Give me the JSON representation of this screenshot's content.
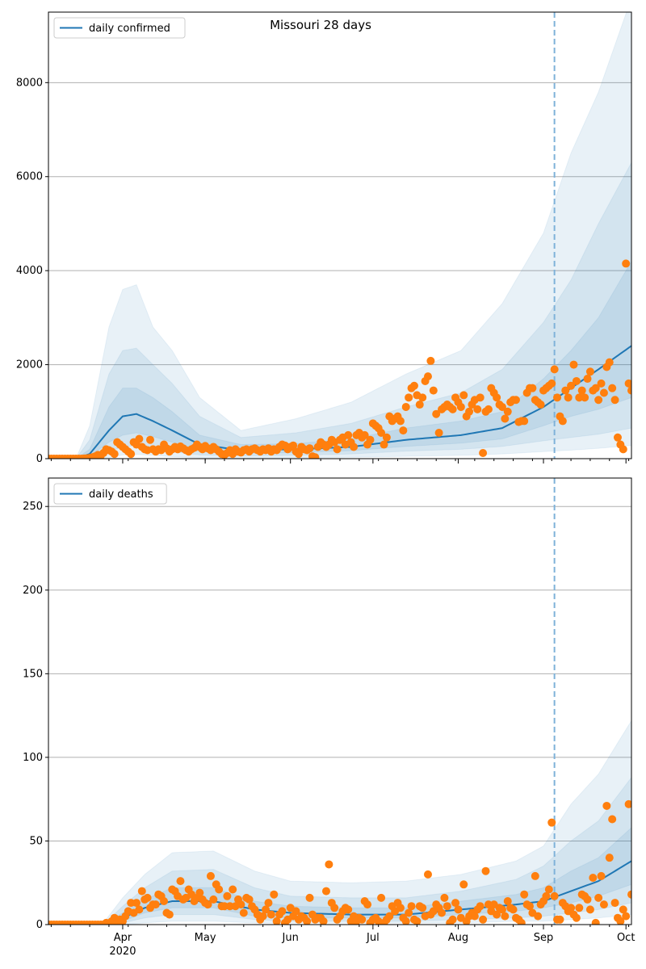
{
  "title": "Missouri 28 days",
  "year_label": "2020",
  "colors": {
    "median": "#1f77b4",
    "band": "#1f77b4",
    "observed": "#ff7f0e",
    "grid": "#b0b0b0",
    "forecast_line": "#7fb2d9"
  },
  "x_axis": {
    "start_date": "2020-03-05",
    "end_day": 212,
    "month_ticks": [
      {
        "label": "Apr",
        "day": 27
      },
      {
        "label": "May",
        "day": 57
      },
      {
        "label": "Jun",
        "day": 88
      },
      {
        "label": "Jul",
        "day": 118
      },
      {
        "label": "Aug",
        "day": 149
      },
      {
        "label": "Sep",
        "day": 180
      },
      {
        "label": "Oct",
        "day": 210
      }
    ],
    "forecast_start_day": 184
  },
  "chart_data": [
    {
      "type": "area",
      "legend": "daily confirmed",
      "legend_placement": "top-left",
      "ylim": [
        0,
        9500
      ],
      "yticks": [
        0,
        2000,
        4000,
        6000,
        8000
      ],
      "grid": true,
      "bands_keypoints": {
        "day": [
          0,
          10,
          15,
          22,
          27,
          32,
          38,
          45,
          55,
          70,
          90,
          110,
          130,
          150,
          165,
          180,
          190,
          200,
          212
        ],
        "lo95": [
          0,
          0,
          0,
          20,
          80,
          90,
          70,
          40,
          20,
          10,
          20,
          30,
          50,
          70,
          100,
          150,
          180,
          220,
          280
        ],
        "lo80": [
          0,
          0,
          20,
          150,
          250,
          280,
          220,
          150,
          80,
          60,
          70,
          100,
          160,
          200,
          260,
          380,
          450,
          520,
          650
        ],
        "lo50": [
          0,
          0,
          50,
          350,
          500,
          550,
          470,
          350,
          150,
          110,
          130,
          170,
          260,
          330,
          420,
          700,
          900,
          1050,
          1300
        ],
        "median": [
          0,
          0,
          100,
          600,
          900,
          950,
          800,
          600,
          300,
          180,
          200,
          250,
          400,
          500,
          650,
          1100,
          1500,
          1900,
          2400
        ],
        "hi50": [
          0,
          0,
          200,
          1100,
          1500,
          1500,
          1300,
          1000,
          500,
          300,
          320,
          420,
          650,
          800,
          1000,
          1700,
          2300,
          3000,
          4200
        ],
        "hi80": [
          0,
          0,
          400,
          1800,
          2300,
          2350,
          2000,
          1600,
          900,
          450,
          550,
          750,
          1100,
          1400,
          1900,
          2900,
          3800,
          5000,
          6300
        ],
        "hi95": [
          0,
          0,
          700,
          2800,
          3600,
          3700,
          2800,
          2300,
          1300,
          600,
          850,
          1200,
          1800,
          2300,
          3300,
          4800,
          6500,
          7800,
          9800
        ]
      },
      "observed": [
        0,
        0,
        0,
        0,
        0,
        0,
        0,
        0,
        0,
        0,
        0,
        0,
        0,
        5,
        8,
        15,
        30,
        50,
        80,
        60,
        120,
        200,
        180,
        150,
        100,
        350,
        300,
        250,
        200,
        150,
        100,
        350,
        300,
        420,
        250,
        200,
        180,
        400,
        200,
        150,
        200,
        180,
        300,
        220,
        150,
        200,
        250,
        200,
        260,
        220,
        180,
        150,
        200,
        230,
        300,
        250,
        200,
        270,
        220,
        180,
        250,
        200,
        150,
        100,
        80,
        120,
        180,
        100,
        200,
        150,
        130,
        180,
        200,
        150,
        200,
        220,
        180,
        150,
        200,
        180,
        220,
        150,
        200,
        180,
        250,
        300,
        280,
        200,
        250,
        280,
        150,
        100,
        250,
        200,
        180,
        220,
        50,
        30,
        250,
        350,
        300,
        250,
        300,
        400,
        350,
        200,
        400,
        450,
        300,
        500,
        350,
        250,
        500,
        550,
        450,
        500,
        300,
        400,
        750,
        700,
        650,
        550,
        300,
        450,
        900,
        800,
        850,
        900,
        800,
        600,
        1100,
        1300,
        1500,
        1550,
        1350,
        1150,
        1300,
        1650,
        1750,
        2080,
        1450,
        950,
        550,
        1050,
        1100,
        1150,
        1100,
        1050,
        1300,
        1200,
        1100,
        1350,
        900,
        1000,
        1150,
        1250,
        1050,
        1300,
        120,
        1000,
        1050,
        1500,
        1400,
        1300,
        1150,
        1100,
        850,
        1000,
        1200,
        1250,
        1250,
        780,
        800,
        800,
        1400,
        1500,
        1500,
        1250,
        1200,
        1150,
        1450,
        1500,
        1550,
        1600,
        1900,
        1300,
        900,
        800,
        1450,
        1300,
        1550,
        2000,
        1650,
        1300,
        1450,
        1300,
        1700,
        1850,
        1450,
        1500,
        1250,
        1600,
        1400,
        1950,
        2050,
        1500,
        1250,
        450,
        300,
        200,
        4150,
        1600,
        1450
      ]
    },
    {
      "type": "area",
      "legend": "daily deaths",
      "legend_placement": "top-left",
      "ylim": [
        0,
        267
      ],
      "yticks": [
        0,
        50,
        100,
        150,
        200,
        250
      ],
      "grid": true,
      "bands_keypoints": {
        "day": [
          0,
          20,
          27,
          35,
          45,
          60,
          75,
          88,
          110,
          130,
          150,
          170,
          180,
          190,
          200,
          212
        ],
        "lo95": [
          0,
          0,
          0,
          1,
          2,
          2,
          1,
          1,
          1,
          1,
          1,
          2,
          2,
          3,
          4,
          6
        ],
        "lo80": [
          0,
          0,
          1,
          4,
          6,
          6,
          3,
          2,
          2,
          2,
          3,
          4,
          5,
          7,
          9,
          13
        ],
        "lo50": [
          0,
          0,
          2,
          7,
          10,
          10,
          5,
          4,
          4,
          4,
          6,
          8,
          10,
          13,
          17,
          24
        ],
        "median": [
          0,
          0,
          4,
          10,
          14,
          14,
          9,
          7,
          6,
          6,
          9,
          12,
          14,
          20,
          26,
          38
        ],
        "hi50": [
          0,
          0,
          7,
          15,
          22,
          22,
          14,
          11,
          10,
          10,
          14,
          18,
          22,
          32,
          40,
          58
        ],
        "hi80": [
          0,
          0,
          11,
          22,
          32,
          33,
          22,
          17,
          16,
          16,
          20,
          27,
          35,
          50,
          62,
          88
        ],
        "hi95": [
          0,
          1,
          16,
          30,
          43,
          44,
          32,
          26,
          25,
          26,
          30,
          38,
          47,
          72,
          90,
          122
        ]
      },
      "observed": [
        0,
        0,
        0,
        0,
        0,
        0,
        0,
        0,
        0,
        0,
        0,
        0,
        0,
        0,
        0,
        0,
        0,
        0,
        0,
        0,
        0,
        1,
        0,
        2,
        4,
        1,
        3,
        2,
        5,
        8,
        13,
        7,
        13,
        9,
        20,
        15,
        16,
        10,
        12,
        12,
        18,
        17,
        14,
        7,
        6,
        21,
        20,
        17,
        26,
        15,
        16,
        21,
        18,
        14,
        16,
        19,
        15,
        13,
        12,
        29,
        15,
        24,
        21,
        11,
        11,
        17,
        11,
        21,
        11,
        15,
        12,
        7,
        16,
        15,
        11,
        9,
        6,
        3,
        5,
        9,
        13,
        6,
        18,
        2,
        6,
        8,
        1,
        3,
        10,
        5,
        8,
        3,
        5,
        4,
        2,
        16,
        6,
        3,
        4,
        4,
        2,
        20,
        36,
        13,
        10,
        3,
        5,
        8,
        10,
        9,
        2,
        5,
        2,
        4,
        3,
        14,
        12,
        1,
        3,
        4,
        2,
        16,
        1,
        3,
        5,
        11,
        8,
        13,
        10,
        4,
        2,
        7,
        11,
        3,
        2,
        11,
        10,
        5,
        30,
        6,
        8,
        12,
        10,
        7,
        16,
        11,
        1,
        3,
        13,
        9,
        4,
        24,
        2,
        5,
        7,
        5,
        9,
        11,
        3,
        32,
        12,
        8,
        12,
        6,
        10,
        9,
        5,
        14,
        10,
        9,
        4,
        3,
        1,
        18,
        12,
        11,
        7,
        29,
        5,
        12,
        14,
        17,
        21,
        61,
        17,
        3,
        3,
        13,
        11,
        8,
        10,
        6,
        4,
        10,
        18,
        17,
        15,
        9,
        28,
        1,
        16,
        29,
        12,
        71,
        40,
        63,
        13,
        4,
        2,
        9,
        5,
        72,
        18
      ]
    }
  ]
}
